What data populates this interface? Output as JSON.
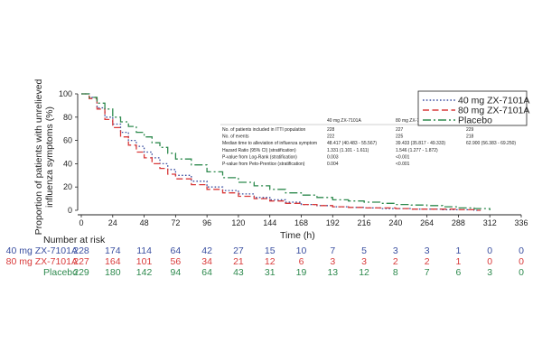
{
  "chart_data": {
    "type": "line",
    "subtype": "kaplan-meier",
    "title": "",
    "xlabel": "Time (h)",
    "ylabel_line1": "Proportion of patients with unrelieved",
    "ylabel_line2": "influenza symptoms (%)",
    "xlim": [
      0,
      336
    ],
    "ylim": [
      0,
      100
    ],
    "xticks": [
      "0",
      "24",
      "48",
      "72",
      "96",
      "120",
      "144",
      "168",
      "192",
      "216",
      "240",
      "264",
      "288",
      "312",
      "336"
    ],
    "yticks": [
      "0",
      "20",
      "40",
      "60",
      "80",
      "100"
    ],
    "grid": false,
    "legend_position": "top-right",
    "series": [
      {
        "name": "40 mg ZX-7101A",
        "color": "#3a4fa0",
        "dash": "dotted",
        "x": [
          0,
          6,
          12,
          18,
          24,
          30,
          36,
          42,
          48,
          54,
          60,
          66,
          72,
          84,
          96,
          108,
          120,
          132,
          144,
          156,
          168,
          180,
          192,
          204,
          216,
          228,
          240,
          252,
          264,
          276,
          288,
          300,
          305
        ],
        "y": [
          100,
          97,
          88,
          80,
          74,
          67,
          60,
          55,
          50,
          45,
          40,
          35,
          30,
          25,
          20,
          17,
          14,
          11,
          9,
          7,
          5,
          4,
          3,
          2.5,
          2,
          1.5,
          1.5,
          1,
          1,
          0.5,
          0.5,
          0,
          0
        ]
      },
      {
        "name": "80 mg ZX-7101A",
        "color": "#d93a3a",
        "dash": "dashed",
        "x": [
          0,
          6,
          12,
          18,
          24,
          30,
          36,
          42,
          48,
          54,
          60,
          66,
          72,
          84,
          96,
          108,
          120,
          132,
          144,
          156,
          168,
          180,
          192,
          204,
          216,
          228,
          240,
          252,
          264,
          276,
          288,
          300,
          305
        ],
        "y": [
          100,
          96,
          87,
          78,
          71,
          63,
          56,
          50,
          45,
          40,
          36,
          31,
          27,
          22,
          18,
          15,
          12,
          10,
          8,
          6,
          5,
          4,
          3,
          2.5,
          2,
          2,
          1.5,
          1,
          1,
          1,
          0.5,
          0,
          0
        ]
      },
      {
        "name": "Placebo",
        "color": "#2e8a4e",
        "dash": "dashdot",
        "x": [
          0,
          6,
          12,
          18,
          24,
          30,
          36,
          42,
          48,
          54,
          60,
          66,
          72,
          84,
          96,
          108,
          120,
          132,
          144,
          156,
          168,
          180,
          192,
          204,
          216,
          228,
          240,
          252,
          264,
          276,
          288,
          300,
          312
        ],
        "y": [
          100,
          97,
          92,
          87,
          80,
          76,
          72,
          67,
          63,
          58,
          54,
          49,
          44,
          39,
          33,
          28,
          24,
          21,
          18,
          15,
          13,
          11,
          9,
          8,
          7,
          6,
          5,
          4.5,
          4,
          3,
          2,
          1.5,
          0
        ]
      }
    ]
  },
  "stats_table": {
    "headers": [
      "",
      "40 mg ZX-7101A",
      "80 mg ZX-7101A",
      "Placebo"
    ],
    "rows": [
      [
        "No. of patients included in ITTI population",
        "228",
        "227",
        "229"
      ],
      [
        "No. of events",
        "222",
        "225",
        "218"
      ],
      [
        "Median time to alleviation of influenza symptom",
        "48.417 (40.483 - 55.567)",
        "39.433 (35.817 - 49.333)",
        "62.900 (56.383 - 69.250)"
      ],
      [
        "Hazard Ratio (95% CI) (stratification)",
        "1.331 (1.101 - 1.611)",
        "1.546 (1.277 - 1.872)",
        ""
      ],
      [
        "P-value from Log-Rank (stratification)",
        "0.003",
        "<0.001",
        ""
      ],
      [
        "P-value from Peto-Prentice (stratification)",
        "0.004",
        "<0.001",
        ""
      ]
    ]
  },
  "risk_table": {
    "title": "Number at risk",
    "rows": [
      {
        "label": "40 mg ZX-7101A",
        "color": "#3a4fa0",
        "values": [
          "228",
          "174",
          "114",
          "64",
          "42",
          "27",
          "15",
          "10",
          "7",
          "5",
          "3",
          "3",
          "1",
          "0",
          "0"
        ]
      },
      {
        "label": "80 mg ZX-7101A",
        "color": "#d93a3a",
        "values": [
          "227",
          "164",
          "101",
          "56",
          "34",
          "21",
          "12",
          "6",
          "3",
          "3",
          "2",
          "2",
          "1",
          "0",
          "0"
        ]
      },
      {
        "label": "Placebo",
        "color": "#2e8a4e",
        "values": [
          "229",
          "180",
          "142",
          "94",
          "64",
          "43",
          "31",
          "19",
          "13",
          "12",
          "8",
          "7",
          "6",
          "3",
          "0"
        ]
      }
    ]
  }
}
